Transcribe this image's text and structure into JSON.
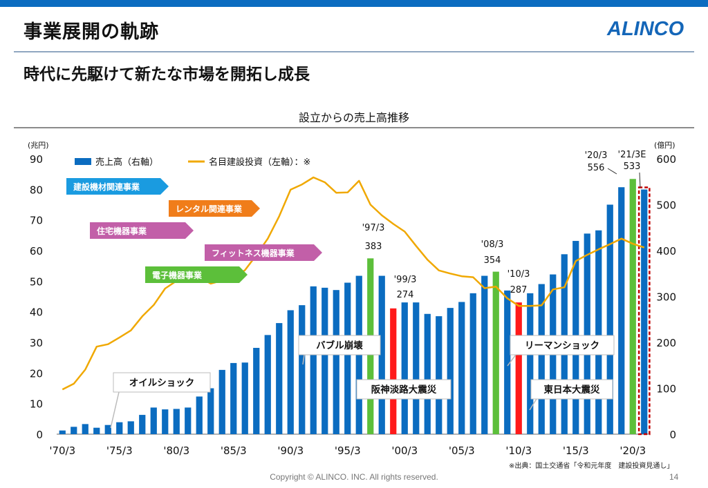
{
  "header": {
    "title": "事業展開の軌跡",
    "logo_text": "ALINCO",
    "subtitle": "時代に先駆けて新たな市場を開拓し成長"
  },
  "footer": {
    "copyright": "Copyright © ALINCO. INC. All rights reserved.",
    "page_number": "14",
    "source_note": "※出典：国土交通省「令和元年度　建設投資見通し」"
  },
  "colors": {
    "bar_default": "#0b6cc0",
    "bar_green": "#5cbf3a",
    "bar_red": "#ff1a1a",
    "line": "#f0a800",
    "estimate_border": "#c00000",
    "brand": "#1466b8"
  },
  "chart_data": {
    "type": "bar",
    "title": "設立からの売上高推移",
    "left_unit": "(兆円)",
    "right_unit": "(億円)",
    "left_ylim": [
      0,
      90
    ],
    "left_ticks": [
      "0",
      "10",
      "20",
      "30",
      "40",
      "50",
      "60",
      "70",
      "80",
      "90"
    ],
    "right_ylim": [
      0,
      600
    ],
    "right_ticks": [
      "0",
      "100",
      "200",
      "300",
      "400",
      "500",
      "600"
    ],
    "x_tick_labels": [
      "'70/3",
      "'75/3",
      "'80/3",
      "'85/3",
      "'90/3",
      "'95/3",
      "'00/3",
      "'05/3",
      "'10/3",
      "'15/3",
      "'20/3"
    ],
    "legend": {
      "bars": "売上高（右軸）",
      "line": "名目建設投資（左軸）：※"
    },
    "series": [
      {
        "name": "売上高（右軸）",
        "axis": "right",
        "categories": [
          "'70",
          "'71",
          "'72",
          "'73",
          "'74",
          "'75",
          "'76",
          "'77",
          "'78",
          "'79",
          "'80",
          "'81",
          "'82",
          "'83",
          "'84",
          "'85",
          "'86",
          "'87",
          "'88",
          "'89",
          "'90",
          "'91",
          "'92",
          "'93",
          "'94",
          "'95",
          "'96",
          "'97",
          "'98",
          "'99",
          "'00",
          "'01",
          "'02",
          "'03",
          "'04",
          "'05",
          "'06",
          "'07",
          "'08",
          "'09",
          "'10",
          "'11",
          "'12",
          "'13",
          "'14",
          "'15",
          "'16",
          "'17",
          "'18",
          "'19",
          "'20",
          "'21E"
        ],
        "values": [
          8,
          16,
          22,
          14,
          20,
          26,
          28,
          42,
          58,
          54,
          55,
          58,
          82,
          100,
          140,
          155,
          156,
          188,
          216,
          242,
          270,
          281,
          322,
          319,
          314,
          330,
          345,
          383,
          345,
          274,
          287,
          287,
          262,
          257,
          275,
          288,
          307,
          345,
          354,
          313,
          287,
          307,
          327,
          348,
          392,
          421,
          437,
          444,
          500,
          538,
          556,
          533
        ],
        "highlight": {
          "green": [
            27,
            38,
            50
          ],
          "red": [
            29,
            40
          ],
          "estimate": [
            51
          ]
        }
      },
      {
        "name": "名目建設投資（左軸）",
        "axis": "left",
        "x_years": [
          1970,
          1971,
          1972,
          1973,
          1974,
          1975,
          1976,
          1977,
          1978,
          1979,
          1980,
          1981,
          1982,
          1983,
          1984,
          1985,
          1986,
          1987,
          1988,
          1989,
          1990,
          1991,
          1992,
          1993,
          1994,
          1995,
          1996,
          1997,
          1998,
          1999,
          2000,
          2001,
          2002,
          2003,
          2004,
          2005,
          2006,
          2007,
          2008,
          2009,
          2010,
          2011,
          2012,
          2013,
          2014,
          2015,
          2016,
          2017,
          2018,
          2019,
          2020,
          2021
        ],
        "values": [
          14.6,
          16.5,
          21.1,
          28.6,
          29.4,
          31.6,
          33.9,
          38.5,
          42.2,
          47.6,
          50.1,
          50.9,
          51.4,
          49.2,
          50.2,
          51.2,
          53.6,
          58.5,
          63.9,
          71.2,
          79.9,
          81.6,
          83.9,
          82.3,
          78.9,
          79.0,
          82.8,
          75.0,
          71.5,
          68.7,
          66.2,
          61.5,
          57.0,
          53.5,
          52.5,
          51.6,
          51.3,
          47.7,
          48.2,
          44.4,
          41.9,
          41.9,
          42.1,
          47.3,
          48.0,
          56.6,
          58.6,
          60.4,
          62.1,
          63.9,
          62.2,
          61.0
        ]
      }
    ],
    "annotations": {
      "era_labels": [
        "建設機材関連事業",
        "レンタル関連事業",
        "住宅機器事業",
        "フィットネス機器事業",
        "電子機器事業"
      ],
      "events": [
        "オイルショック",
        "バブル崩壊",
        "阪神淡路大震災",
        "リーマンショック",
        "東日本大震災"
      ],
      "value_callouts": [
        {
          "period": "'97/3",
          "value": "383"
        },
        {
          "period": "'99/3",
          "value": "274"
        },
        {
          "period": "'08/3",
          "value": "354"
        },
        {
          "period": "'10/3",
          "value": "287"
        },
        {
          "period": "'20/3",
          "value": "556"
        },
        {
          "period": "'21/3E",
          "value": "533"
        }
      ]
    }
  }
}
